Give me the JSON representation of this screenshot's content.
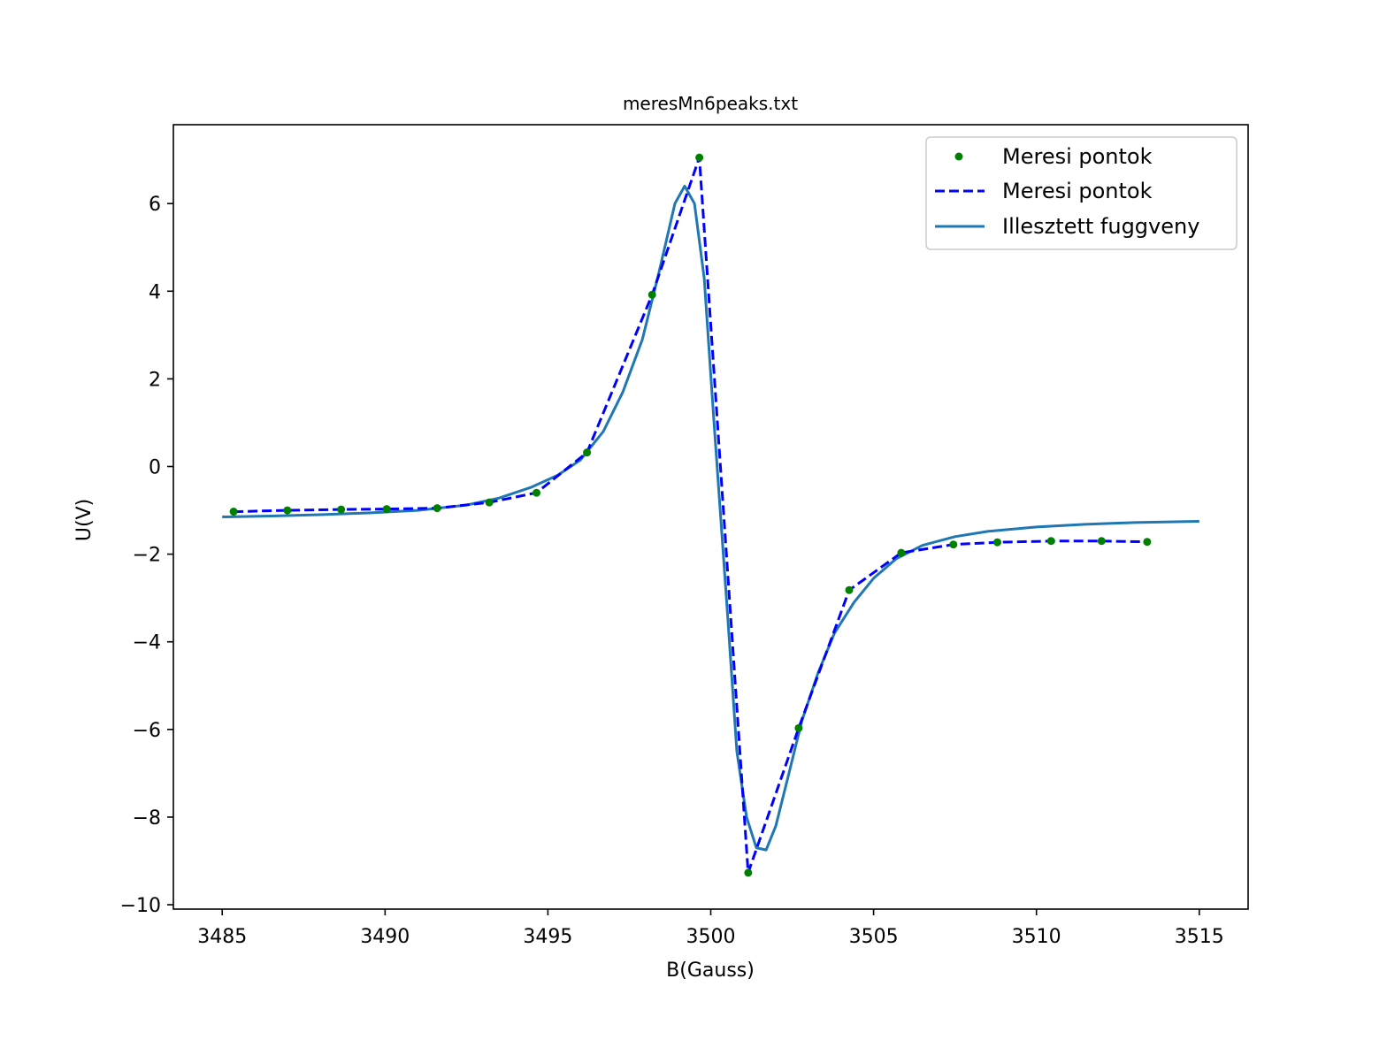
{
  "chart_data": {
    "type": "line",
    "title": "meresMn6peaks.txt",
    "xlabel": "B(Gauss)",
    "ylabel": "U(V)",
    "xlim": [
      3483.5,
      3516.5
    ],
    "ylim": [
      -10.1,
      7.8
    ],
    "xticks": [
      3485,
      3490,
      3495,
      3500,
      3505,
      3510,
      3515
    ],
    "yticks": [
      -10,
      -8,
      -6,
      -4,
      -2,
      0,
      2,
      4,
      6
    ],
    "xtick_labels": [
      "3485",
      "3490",
      "3495",
      "3500",
      "3505",
      "3510",
      "3515"
    ],
    "ytick_labels": [
      "−10",
      "−8",
      "−6",
      "−4",
      "−2",
      "0",
      "2",
      "4",
      "6"
    ],
    "grid": false,
    "legend_position": "top-right",
    "series": [
      {
        "name": "Meresi pontok",
        "style": "markers",
        "color": "#008000",
        "x": [
          3485.35,
          3487.0,
          3488.65,
          3490.05,
          3491.6,
          3493.2,
          3494.65,
          3496.2,
          3498.2,
          3499.65,
          3501.15,
          3502.7,
          3504.25,
          3505.85,
          3507.45,
          3508.8,
          3510.45,
          3512.0,
          3513.4
        ],
        "y": [
          -1.03,
          -1.0,
          -0.98,
          -0.97,
          -0.95,
          -0.82,
          -0.6,
          0.32,
          3.92,
          7.05,
          -9.27,
          -5.97,
          -2.82,
          -1.97,
          -1.78,
          -1.73,
          -1.7,
          -1.7,
          -1.72
        ]
      },
      {
        "name": "Meresi pontok",
        "style": "dashed",
        "color": "#0000ff",
        "x": [
          3485.35,
          3487.0,
          3488.65,
          3490.05,
          3491.6,
          3493.2,
          3494.65,
          3496.2,
          3498.2,
          3499.65,
          3501.15,
          3502.7,
          3504.25,
          3505.85,
          3507.45,
          3508.8,
          3510.45,
          3512.0,
          3513.4
        ],
        "y": [
          -1.03,
          -1.0,
          -0.98,
          -0.97,
          -0.95,
          -0.82,
          -0.6,
          0.32,
          3.92,
          7.05,
          -9.27,
          -5.97,
          -2.82,
          -1.97,
          -1.78,
          -1.73,
          -1.7,
          -1.7,
          -1.72
        ]
      },
      {
        "name": "Illesztett fuggveny",
        "style": "solid",
        "color": "#1f77b4",
        "x": [
          3485.0,
          3486.5,
          3488.0,
          3489.5,
          3491.0,
          3492.5,
          3493.5,
          3494.5,
          3495.3,
          3496.0,
          3496.7,
          3497.3,
          3497.9,
          3498.4,
          3498.9,
          3499.2,
          3499.5,
          3499.8,
          3500.1,
          3500.5,
          3500.8,
          3501.1,
          3501.4,
          3501.7,
          3502.0,
          3502.4,
          3502.8,
          3503.3,
          3503.8,
          3504.4,
          3505.0,
          3505.7,
          3506.5,
          3507.5,
          3508.5,
          3510.0,
          3511.5,
          3513.0,
          3515.0
        ],
        "y": [
          -1.15,
          -1.13,
          -1.1,
          -1.06,
          -1.0,
          -0.88,
          -0.72,
          -0.47,
          -0.2,
          0.15,
          0.8,
          1.7,
          2.9,
          4.4,
          6.0,
          6.4,
          6.0,
          4.3,
          1.0,
          -3.2,
          -6.5,
          -8.0,
          -8.7,
          -8.75,
          -8.2,
          -7.0,
          -5.8,
          -4.7,
          -3.8,
          -3.1,
          -2.55,
          -2.1,
          -1.8,
          -1.6,
          -1.48,
          -1.38,
          -1.32,
          -1.28,
          -1.25
        ]
      }
    ]
  }
}
